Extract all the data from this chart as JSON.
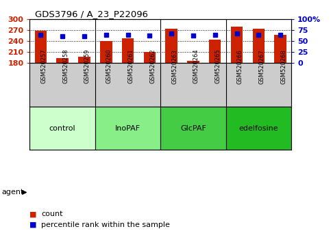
{
  "title": "GDS3796 / A_23_P22096",
  "samples": [
    "GSM520257",
    "GSM520258",
    "GSM520259",
    "GSM520260",
    "GSM520261",
    "GSM520262",
    "GSM520263",
    "GSM520264",
    "GSM520265",
    "GSM520266",
    "GSM520267",
    "GSM520268"
  ],
  "bar_values": [
    268,
    193,
    197,
    240,
    248,
    210,
    275,
    186,
    244,
    280,
    274,
    257
  ],
  "dot_values": [
    65,
    62,
    62,
    64,
    65,
    63,
    67,
    63,
    65,
    67,
    65,
    64
  ],
  "bar_color": "#cc2200",
  "dot_color": "#0000cc",
  "ylim_left": [
    180,
    300
  ],
  "ylim_right": [
    0,
    100
  ],
  "yticks_left": [
    180,
    210,
    240,
    270,
    300
  ],
  "yticks_right": [
    0,
    25,
    50,
    75,
    100
  ],
  "ytick_labels_right": [
    "0",
    "25",
    "50",
    "75",
    "100%"
  ],
  "groups": [
    {
      "label": "control",
      "start": 0,
      "end": 3,
      "color": "#ccffcc"
    },
    {
      "label": "InoPAF",
      "start": 3,
      "end": 6,
      "color": "#88ee88"
    },
    {
      "label": "GlcPAF",
      "start": 6,
      "end": 9,
      "color": "#44cc44"
    },
    {
      "label": "edelfosine",
      "start": 9,
      "end": 12,
      "color": "#22bb22"
    }
  ],
  "agent_label": "agent",
  "legend_count_label": "count",
  "legend_pct_label": "percentile rank within the sample",
  "label_bg": "#cccccc",
  "bar_width": 0.55
}
